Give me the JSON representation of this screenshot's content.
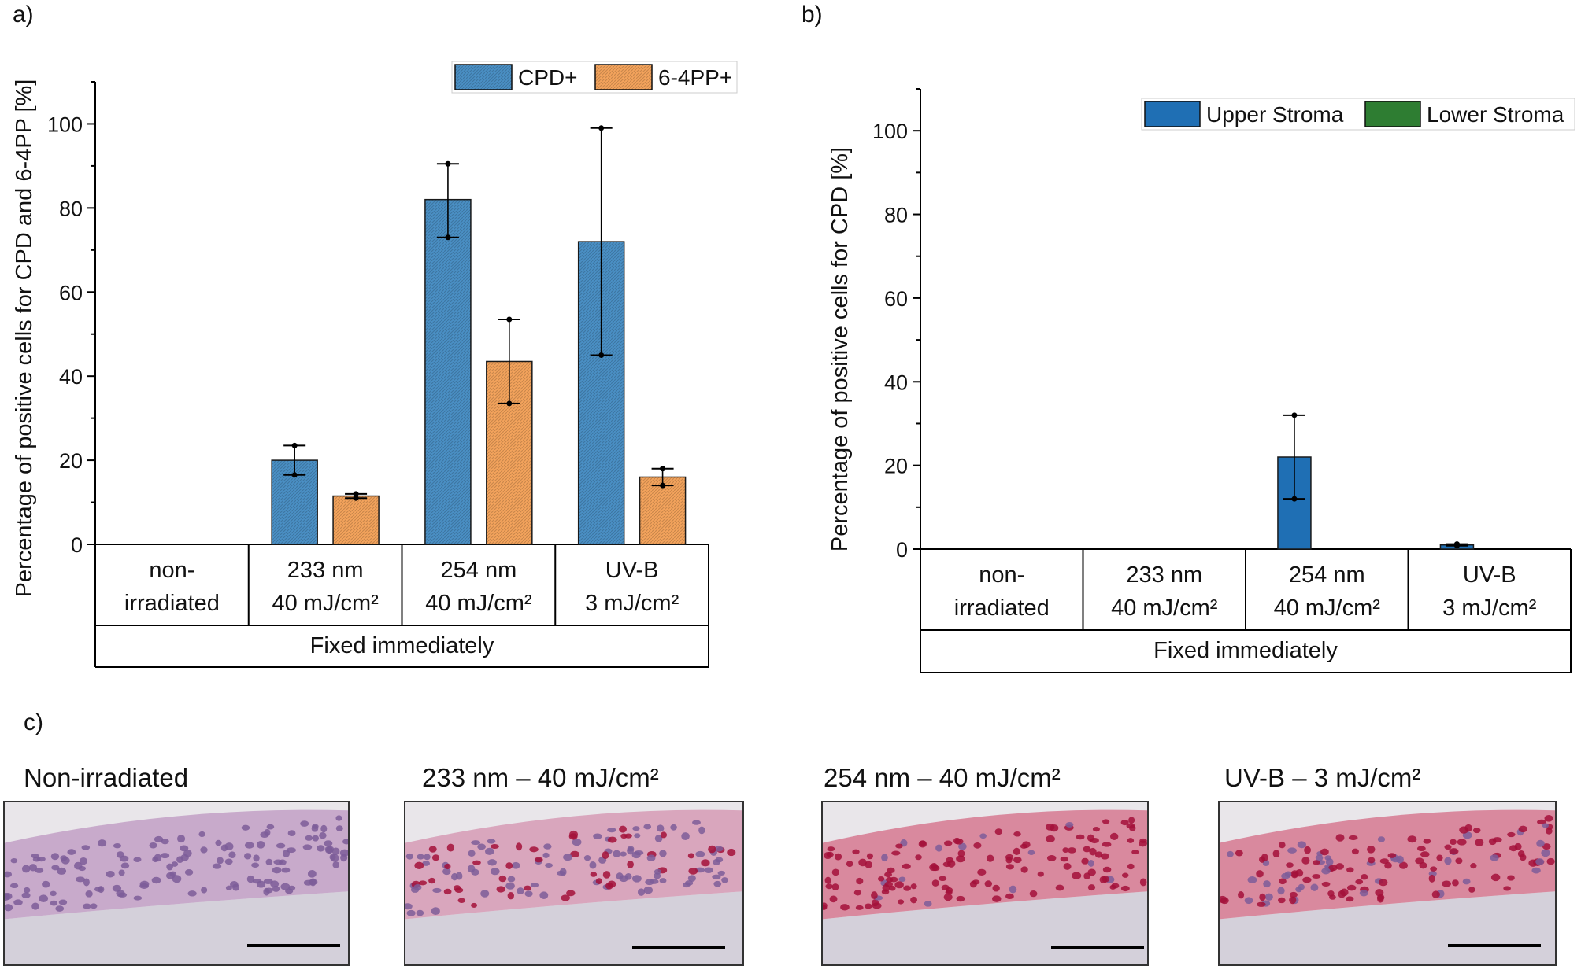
{
  "panel_labels": {
    "a": "a)",
    "b": "b)",
    "c": "c)"
  },
  "colors": {
    "cpd": "#4a8fc4",
    "pp64": "#f3a35c",
    "upper_stroma": "#1f6fb4",
    "lower_stroma": "#2e7d32",
    "axis": "#000000"
  },
  "chart_data": [
    {
      "id": "a",
      "type": "bar",
      "ylabel": "Percentage of positive cells for CPD and 6-4PP [%]",
      "ylim": [
        0,
        110
      ],
      "yticks": [
        0,
        20,
        40,
        60,
        80,
        100
      ],
      "categories": [
        [
          "non-",
          "irradiated"
        ],
        [
          "233 nm",
          "40 mJ/cm²"
        ],
        [
          "254 nm",
          "40 mJ/cm²"
        ],
        [
          "UV-B",
          "3 mJ/cm²"
        ]
      ],
      "group_label": "Fixed immediately",
      "legend_position": "top-right",
      "series": [
        {
          "name": "CPD+",
          "color_key": "cpd",
          "values": [
            0,
            20,
            82,
            72
          ],
          "err_low": [
            0,
            16.5,
            73,
            45
          ],
          "err_high": [
            0,
            23.5,
            90.5,
            99
          ]
        },
        {
          "name": "6-4PP+",
          "color_key": "pp64",
          "values": [
            0,
            11.5,
            43.5,
            16
          ],
          "err_low": [
            0,
            11,
            33.5,
            14
          ],
          "err_high": [
            0,
            12,
            53.5,
            18
          ]
        }
      ]
    },
    {
      "id": "b",
      "type": "bar",
      "ylabel": "Percentage of positive cells for CPD [%]",
      "ylim": [
        0,
        110
      ],
      "yticks": [
        0,
        20,
        40,
        60,
        80,
        100
      ],
      "categories": [
        [
          "non-",
          "irradiated"
        ],
        [
          "233 nm",
          "40 mJ/cm²"
        ],
        [
          "254 nm",
          "40 mJ/cm²"
        ],
        [
          "UV-B",
          "3 mJ/cm²"
        ]
      ],
      "group_label": "Fixed immediately",
      "legend_position": "top-right",
      "series": [
        {
          "name": "Upper Stroma",
          "color_key": "upper_stroma",
          "values": [
            0,
            0,
            22,
            1
          ],
          "err_low": [
            0,
            0,
            12,
            0.8
          ],
          "err_high": [
            0,
            0,
            32,
            1.2
          ]
        },
        {
          "name": "Lower Stroma",
          "color_key": "lower_stroma",
          "values": [
            0,
            0,
            0,
            0
          ],
          "err_low": [
            0,
            0,
            0,
            0
          ],
          "err_high": [
            0,
            0,
            0,
            0
          ]
        }
      ]
    }
  ],
  "micrographs": [
    {
      "title": "Non-irradiated",
      "stain": "none"
    },
    {
      "title": "233 nm – 40 mJ/cm²",
      "stain": "moderate"
    },
    {
      "title": "254 nm – 40 mJ/cm²",
      "stain": "strong"
    },
    {
      "title": "UV-B – 3 mJ/cm²",
      "stain": "strong-lower"
    }
  ]
}
